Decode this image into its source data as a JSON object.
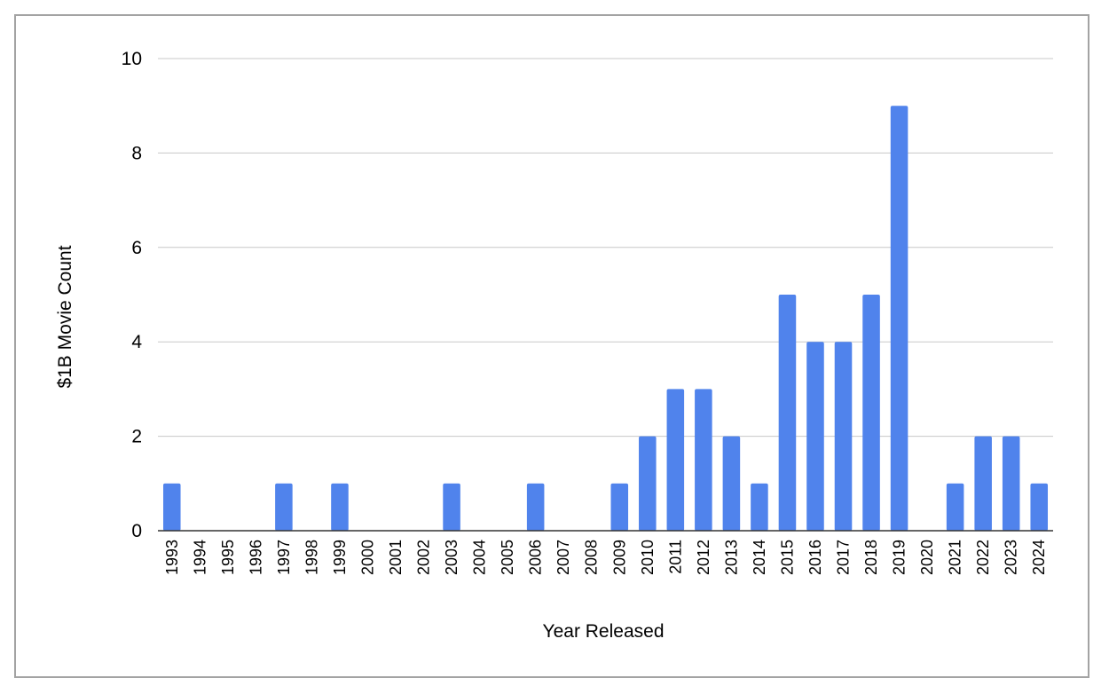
{
  "chart_data": {
    "type": "bar",
    "title": "",
    "xlabel": "Year Released",
    "ylabel": "$1B Movie Count",
    "ylim": [
      0,
      10
    ],
    "yticks": [
      "0",
      "2",
      "4",
      "6",
      "8",
      "10"
    ],
    "grid": true,
    "legend": "none",
    "bar_color": "#5083ec",
    "categories": [
      "1993",
      "1994",
      "1995",
      "1996",
      "1997",
      "1998",
      "1999",
      "2000",
      "2001",
      "2002",
      "2003",
      "2004",
      "2005",
      "2006",
      "2007",
      "2008",
      "2009",
      "2010",
      "2011",
      "2012",
      "2013",
      "2014",
      "2015",
      "2016",
      "2017",
      "2018",
      "2019",
      "2020",
      "2021",
      "2022",
      "2023",
      "2024"
    ],
    "values": [
      1,
      0,
      0,
      0,
      1,
      0,
      1,
      0,
      0,
      0,
      1,
      0,
      0,
      1,
      0,
      0,
      1,
      2,
      3,
      3,
      2,
      1,
      5,
      4,
      4,
      5,
      9,
      0,
      1,
      2,
      2,
      1
    ]
  }
}
